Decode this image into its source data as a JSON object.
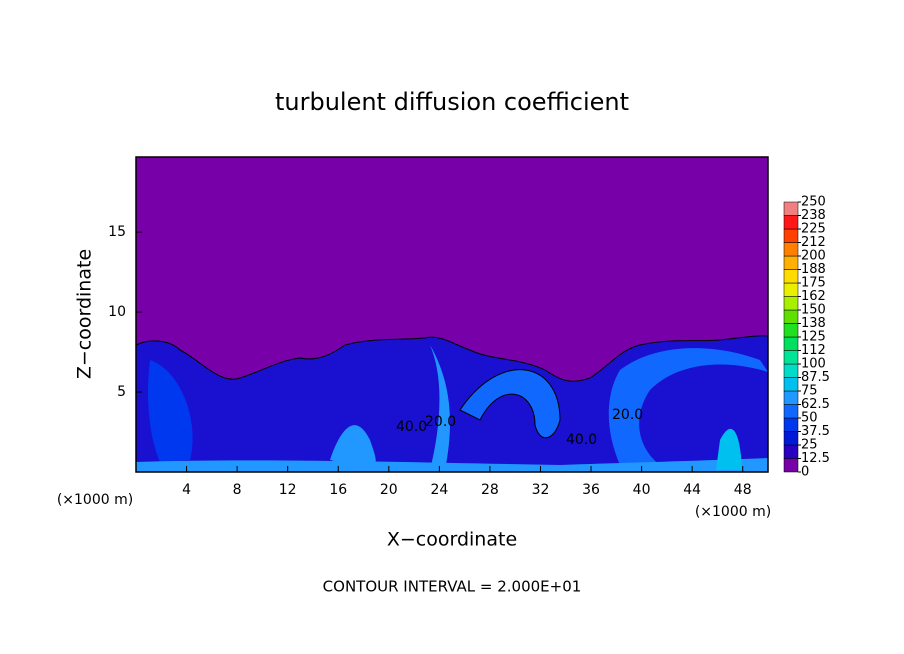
{
  "chart_data": {
    "type": "contour",
    "title": "turbulent diffusion coefficient",
    "x_label": "X−coordinate",
    "y_label": "Z−coordinate",
    "x_unit": "(×1000 m)",
    "footer": "CONTOUR INTERVAL = 2.000E+01",
    "contour_labels": [
      "40.0",
      "20.0",
      "40.0",
      "20.0"
    ],
    "xlim": [
      0,
      50
    ],
    "ylim": [
      0,
      19.7
    ],
    "xticks": [
      4,
      8,
      12,
      16,
      20,
      24,
      28,
      32,
      36,
      40,
      44,
      48
    ],
    "yticks": [
      5,
      10,
      15
    ],
    "colorbar": {
      "ticks": [
        0,
        12.5,
        25,
        37.5,
        50,
        62.5,
        75,
        87.5,
        100,
        {
          "value": 112.5,
          "label": "112"
        },
        125,
        {
          "value": 137.5,
          "label": "138"
        },
        150,
        {
          "value": 162.5,
          "label": "162"
        },
        175,
        {
          "value": 187.5,
          "label": "188"
        },
        200,
        {
          "value": 212.5,
          "label": "212"
        },
        225,
        {
          "value": 237.5,
          "label": "238"
        },
        250
      ],
      "colors": [
        "#7800a8",
        "#2a00c0",
        "#0018d8",
        "#0038f0",
        "#1068ff",
        "#2098ff",
        "#00c0f0",
        "#00dcc8",
        "#00e498",
        "#00e060",
        "#20e020",
        "#60e000",
        "#a8f000",
        "#e8f000",
        "#ffdc00",
        "#ffb000",
        "#ff8000",
        "#ff4000",
        "#ff1818",
        "#f08080"
      ]
    }
  }
}
